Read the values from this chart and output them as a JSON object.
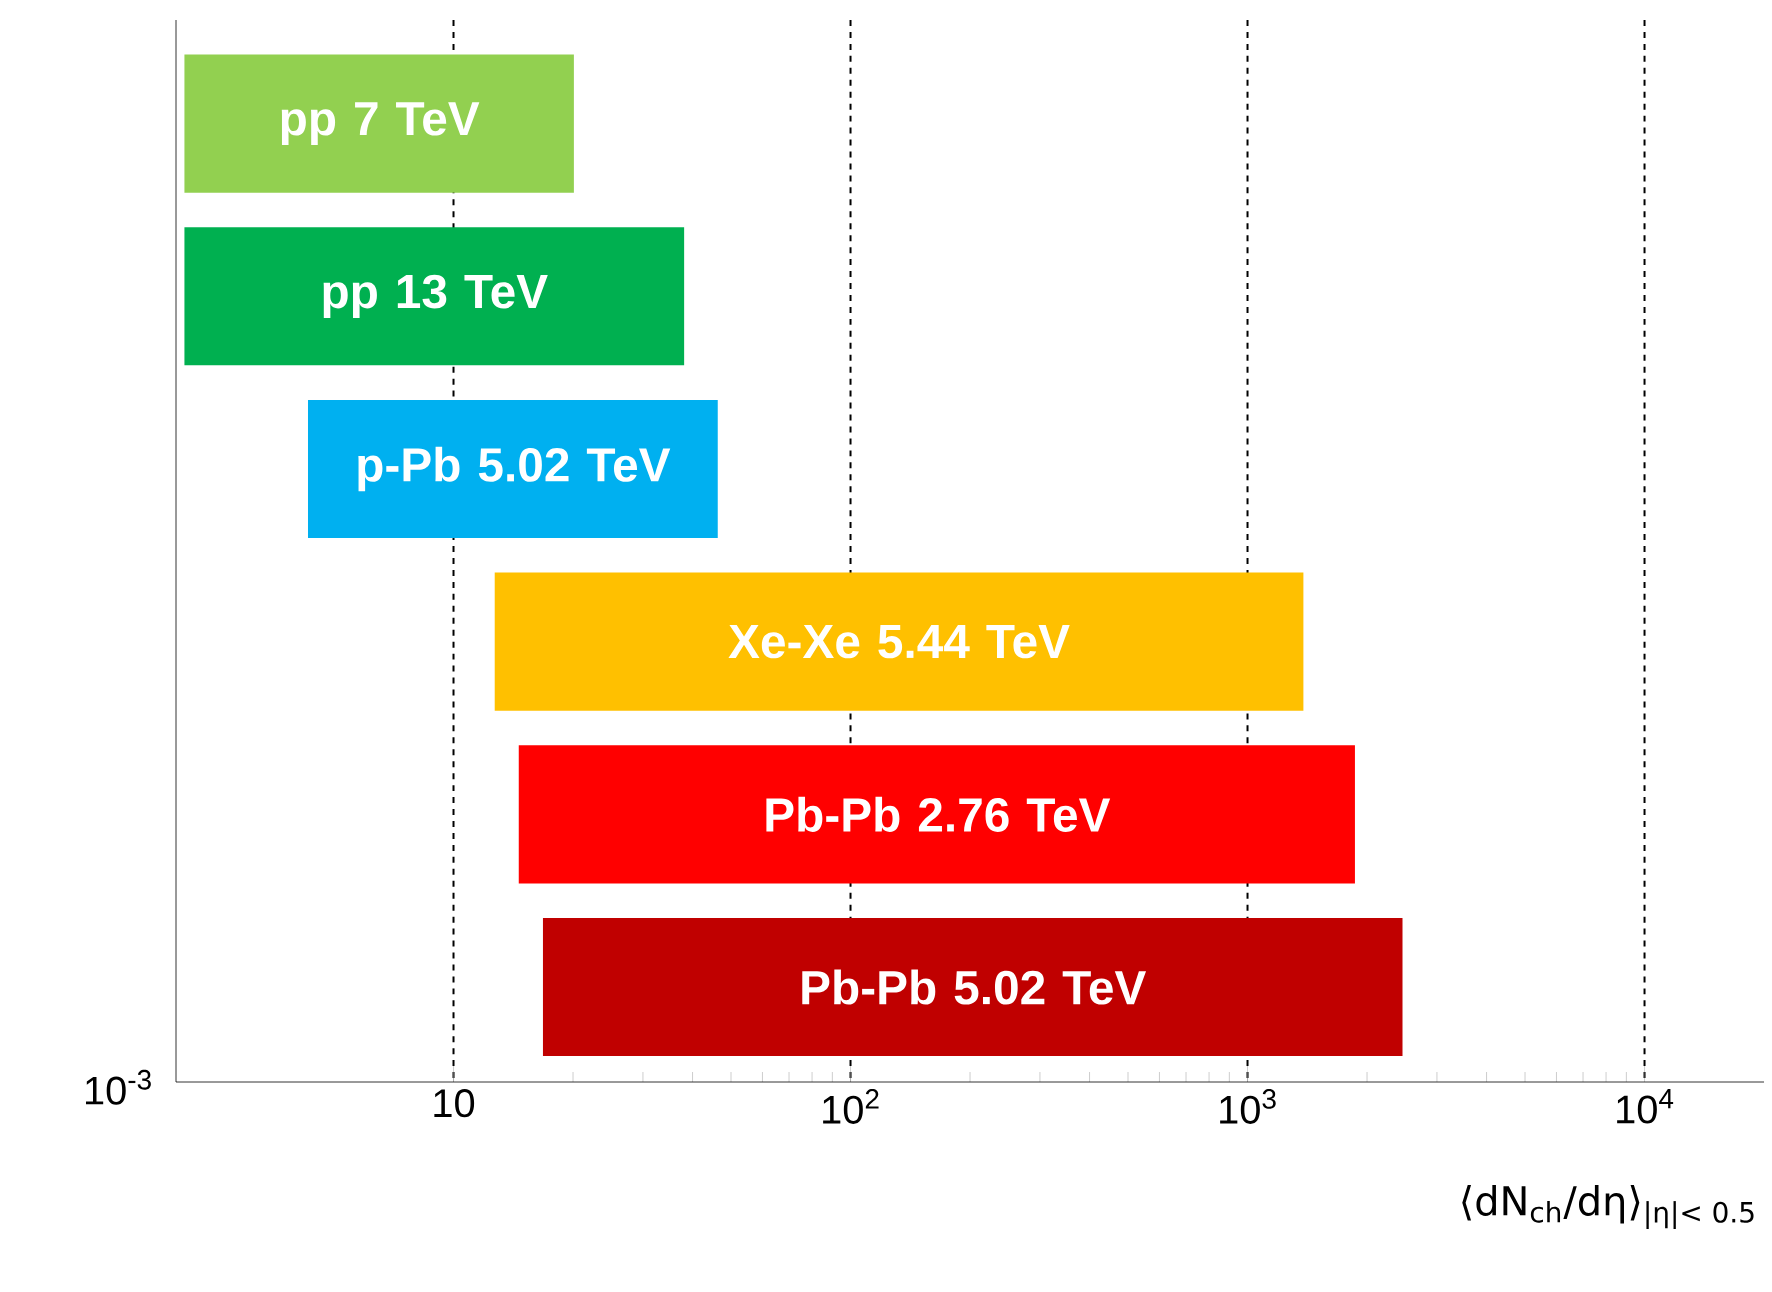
{
  "chart_data": {
    "type": "bar",
    "orientation": "horizontal",
    "categories": [
      "pp 7 TeV",
      "pp 13 TeV",
      "p-Pb 5.02 TeV",
      "Xe-Xe 5.44 TeV",
      "Pb-Pb 2.76 TeV",
      "Pb-Pb 5.02 TeV"
    ],
    "base": [
      2.1,
      2.1,
      4.3,
      12.7,
      14.6,
      16.8
    ],
    "values": [
      18,
      36,
      42,
      1370,
      1850,
      2440
    ],
    "colors": [
      "#92d050",
      "#00b050",
      "#00b0f0",
      "#ffc000",
      "#ff0000",
      "#c00000"
    ],
    "xlim": [
      2,
      20000
    ],
    "xticks": [
      10,
      {
        "value": 100,
        "label": "10$^{2}$"
      },
      {
        "value": 1000,
        "label": "10$^{3}$"
      },
      {
        "value": 10000,
        "label": "10$^{4}$"
      }
    ],
    "log": "x",
    "grid": "x",
    "xlabel": "⟨dN$_{ch}$/dη⟩$_{|η|< 0.5}$",
    "annotations": [
      "10$^{-3}$"
    ]
  }
}
